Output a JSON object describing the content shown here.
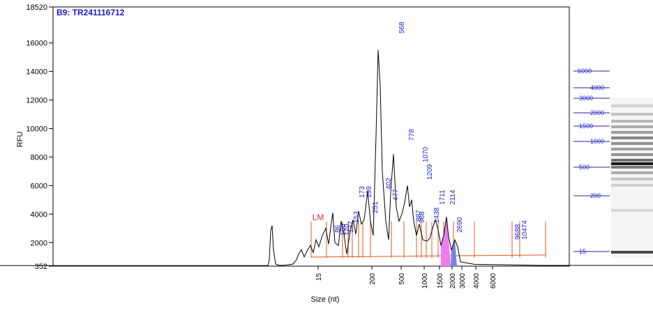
{
  "chart_data": {
    "type": "line",
    "title": "B9: TR241116712",
    "xlabel": "Size (nt)",
    "ylabel": "RFU",
    "ylim": [
      352,
      18520
    ],
    "y_ticks": [
      "18520",
      "16000",
      "14000",
      "12000",
      "10000",
      "8000",
      "6000",
      "4000",
      "2000",
      "352"
    ],
    "x_ticks": [
      "15",
      "200",
      "500",
      "1000",
      "1500",
      "2000",
      "3000",
      "4000",
      "6000"
    ],
    "peak_labels": [
      "LM",
      "86",
      "106",
      "120",
      "137",
      "153",
      "173",
      "199",
      "251",
      "402",
      "477",
      "568",
      "778",
      "887",
      "968",
      "1070",
      "1209",
      "1438",
      "1711",
      "2114",
      "2690",
      "9688",
      "10474"
    ],
    "ladder_labels": [
      "6000",
      "4000",
      "3000",
      "2000",
      "1500",
      "1000",
      "500",
      "200",
      "15"
    ],
    "trace": [
      [
        0,
        390
      ],
      [
        383,
        390
      ],
      [
        384,
        395
      ],
      [
        386,
        800
      ],
      [
        388,
        2800
      ],
      [
        390,
        3200
      ],
      [
        392,
        1500
      ],
      [
        395,
        500
      ],
      [
        400,
        400
      ],
      [
        410,
        420
      ],
      [
        420,
        500
      ],
      [
        425,
        800
      ],
      [
        428,
        1200
      ],
      [
        432,
        1500
      ],
      [
        436,
        1000
      ],
      [
        440,
        1400
      ],
      [
        445,
        1800
      ],
      [
        449,
        1300
      ],
      [
        453,
        2200
      ],
      [
        457,
        1700
      ],
      [
        462,
        2500
      ],
      [
        467,
        3000
      ],
      [
        471,
        1900
      ],
      [
        475,
        3400
      ],
      [
        477,
        4100
      ],
      [
        480,
        2000
      ],
      [
        485,
        1800
      ],
      [
        489,
        3500
      ],
      [
        493,
        2600
      ],
      [
        497,
        1200
      ],
      [
        502,
        2800
      ],
      [
        506,
        3600
      ],
      [
        510,
        2600
      ],
      [
        514,
        4200
      ],
      [
        518,
        3300
      ],
      [
        522,
        3600
      ],
      [
        527,
        5600
      ],
      [
        531,
        3500
      ],
      [
        535,
        2500
      ],
      [
        539,
        9500
      ],
      [
        542,
        15500
      ],
      [
        545,
        13000
      ],
      [
        548,
        7000
      ],
      [
        553,
        3500
      ],
      [
        557,
        2200
      ],
      [
        560,
        5500
      ],
      [
        564,
        8200
      ],
      [
        568,
        4500
      ],
      [
        572,
        3500
      ],
      [
        576,
        4000
      ],
      [
        580,
        4800
      ],
      [
        584,
        6000
      ],
      [
        587,
        4500
      ],
      [
        590,
        5000
      ],
      [
        593,
        3500
      ],
      [
        597,
        2500
      ],
      [
        601,
        3300
      ],
      [
        606,
        2200
      ],
      [
        612,
        2100
      ],
      [
        616,
        2300
      ],
      [
        620,
        3000
      ],
      [
        624,
        3600
      ],
      [
        628,
        2900
      ],
      [
        632,
        1800
      ],
      [
        636,
        2500
      ],
      [
        640,
        3800
      ],
      [
        643,
        2400
      ],
      [
        647,
        1500
      ],
      [
        652,
        2200
      ],
      [
        656,
        1700
      ],
      [
        660,
        650
      ],
      [
        680,
        480
      ],
      [
        720,
        450
      ],
      [
        780,
        400
      ],
      [
        930,
        400
      ],
      [
        936,
        400
      ]
    ],
    "trace_x_range": [
      0,
      936
    ]
  }
}
